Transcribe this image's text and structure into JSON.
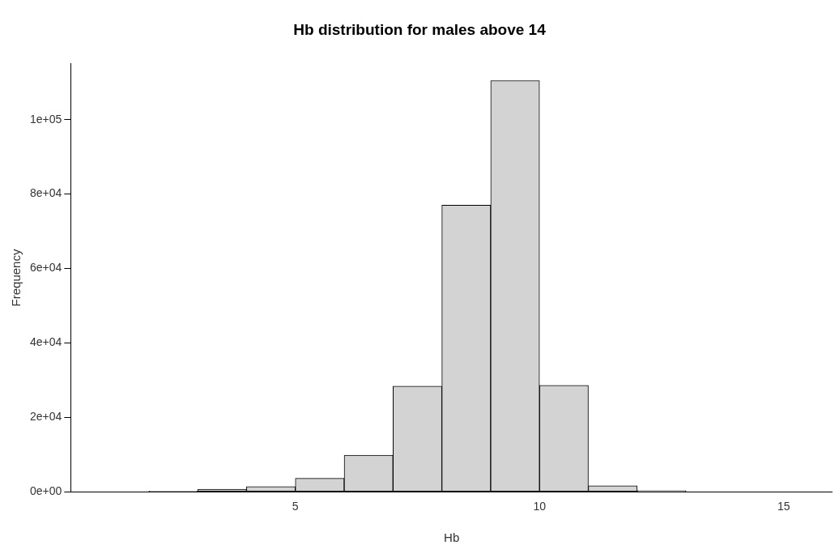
{
  "chart_data": {
    "type": "histogram",
    "title": "Hb distribution for males above 14",
    "xlabel": "Hb",
    "ylabel": "Frequency",
    "bins": [
      1,
      2,
      3,
      4,
      5,
      6,
      7,
      8,
      9,
      10,
      11,
      12,
      13,
      14,
      15,
      16
    ],
    "values": [
      0,
      200,
      700,
      1400,
      3600,
      9800,
      28400,
      77000,
      110500,
      28600,
      1600,
      300,
      0,
      0,
      0
    ],
    "color": "#d3d3d3",
    "xlim": [
      0.4,
      16
    ],
    "xticks": [
      5,
      10,
      15
    ],
    "ylim": [
      0,
      115000
    ],
    "yticks": [
      {
        "value": 0,
        "label": "0e+00"
      },
      {
        "value": 20000,
        "label": "2e+04"
      },
      {
        "value": 40000,
        "label": "4e+04"
      },
      {
        "value": 60000,
        "label": "6e+04"
      },
      {
        "value": 80000,
        "label": "8e+04"
      },
      {
        "value": 100000,
        "label": "1e+05"
      }
    ],
    "grid": false
  }
}
